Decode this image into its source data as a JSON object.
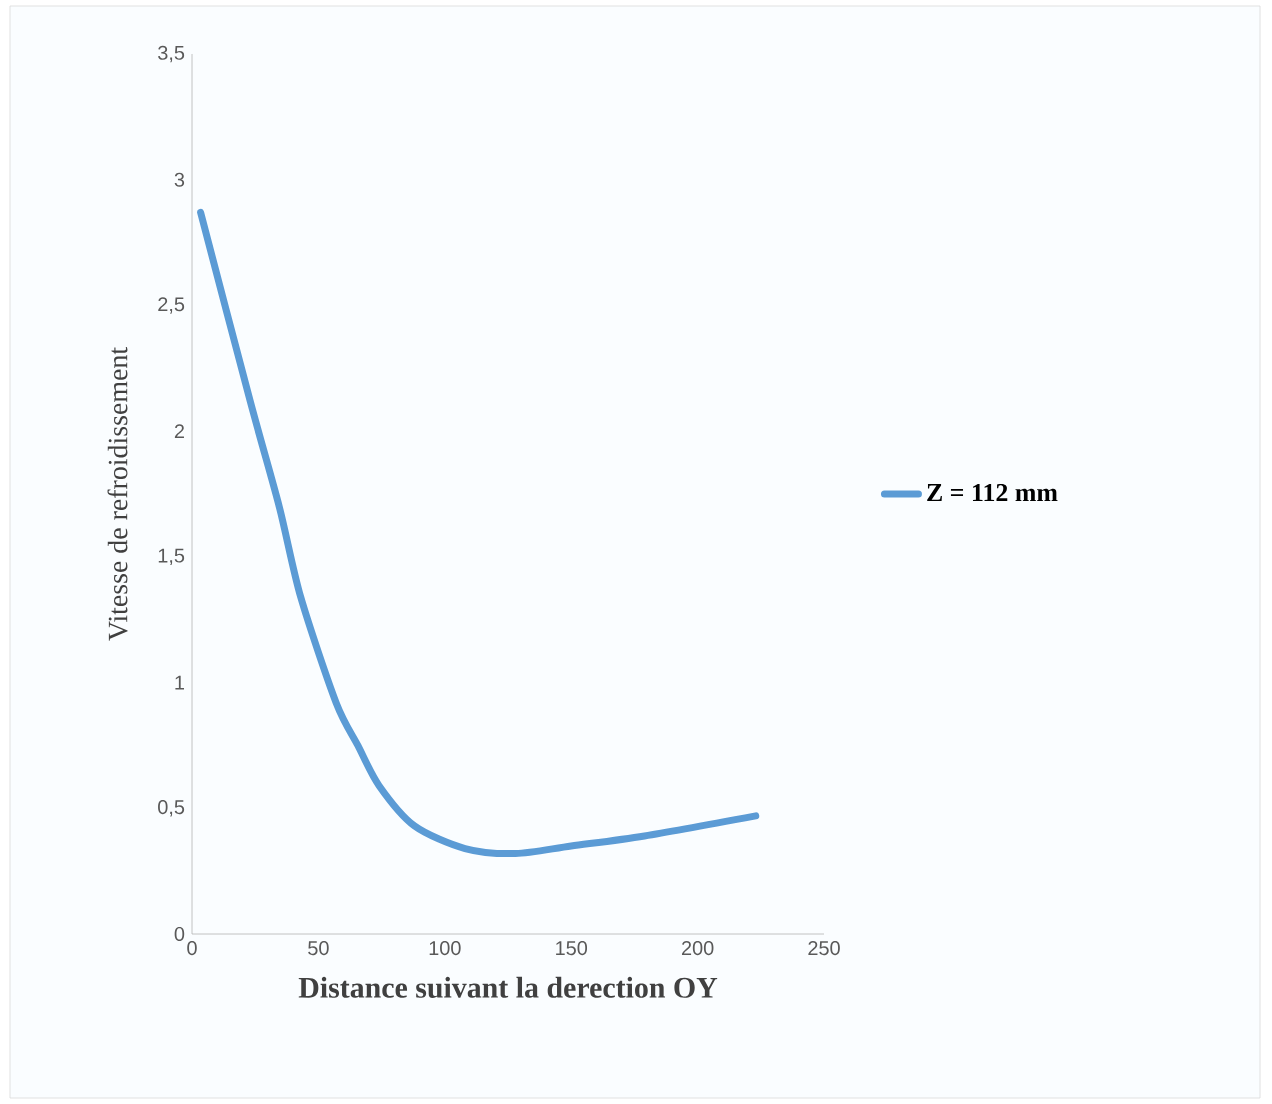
{
  "chart_data": {
    "type": "line",
    "xlabel": "Distance suivant la derection OY",
    "ylabel": "Vitesse  de refroidissement",
    "x": [
      3.4,
      23,
      34.5,
      43,
      57,
      65.6,
      74,
      88,
      108,
      128,
      150,
      179,
      223
    ],
    "series": [
      {
        "name": "Z = 112 mm",
        "color": "#5b9bd5",
        "values": [
          2.87,
          2.12,
          1.7,
          1.34,
          0.92,
          0.75,
          0.59,
          0.43,
          0.34,
          0.32,
          0.35,
          0.39,
          0.47
        ]
      }
    ],
    "xlim": [
      0,
      250
    ],
    "ylim": [
      0,
      3.5
    ],
    "xticks": [
      0,
      50,
      100,
      150,
      200,
      250
    ],
    "yticks": [
      0,
      {
        "value": 0.5,
        "label": "0,5"
      },
      1,
      {
        "value": 1.5,
        "label": "1,5"
      },
      2,
      {
        "value": 2.5,
        "label": "2,5"
      },
      3,
      {
        "value": 3.5,
        "label": "3,5"
      }
    ],
    "grid": false,
    "legend": "right",
    "marker": "none",
    "line_style": "solid"
  }
}
